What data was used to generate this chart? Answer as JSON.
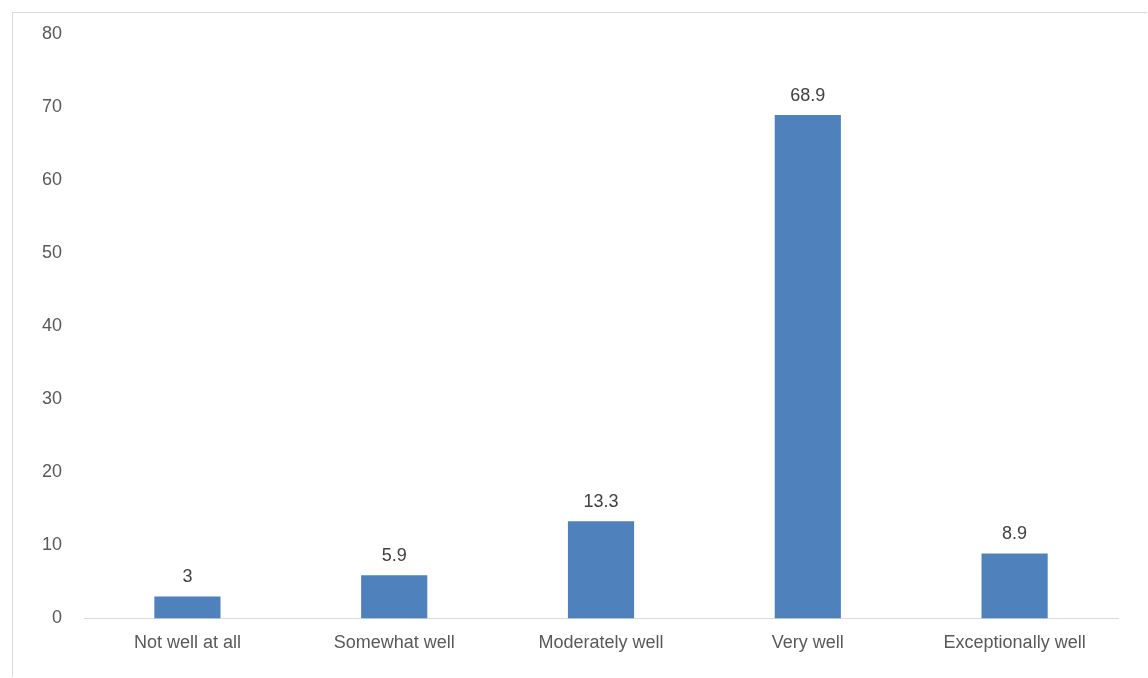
{
  "chart_data": {
    "type": "bar",
    "categories": [
      "Not well at all",
      "Somewhat well",
      "Moderately well",
      "Very well",
      "Exceptionally well"
    ],
    "values": [
      3,
      5.9,
      13.3,
      68.9,
      8.9
    ],
    "color": "#4f81bd",
    "ylim": [
      0,
      80
    ],
    "yticks": [
      0,
      10,
      20,
      30,
      40,
      50,
      60,
      70,
      80
    ],
    "grid": false,
    "data_labels": true,
    "legend": false
  }
}
